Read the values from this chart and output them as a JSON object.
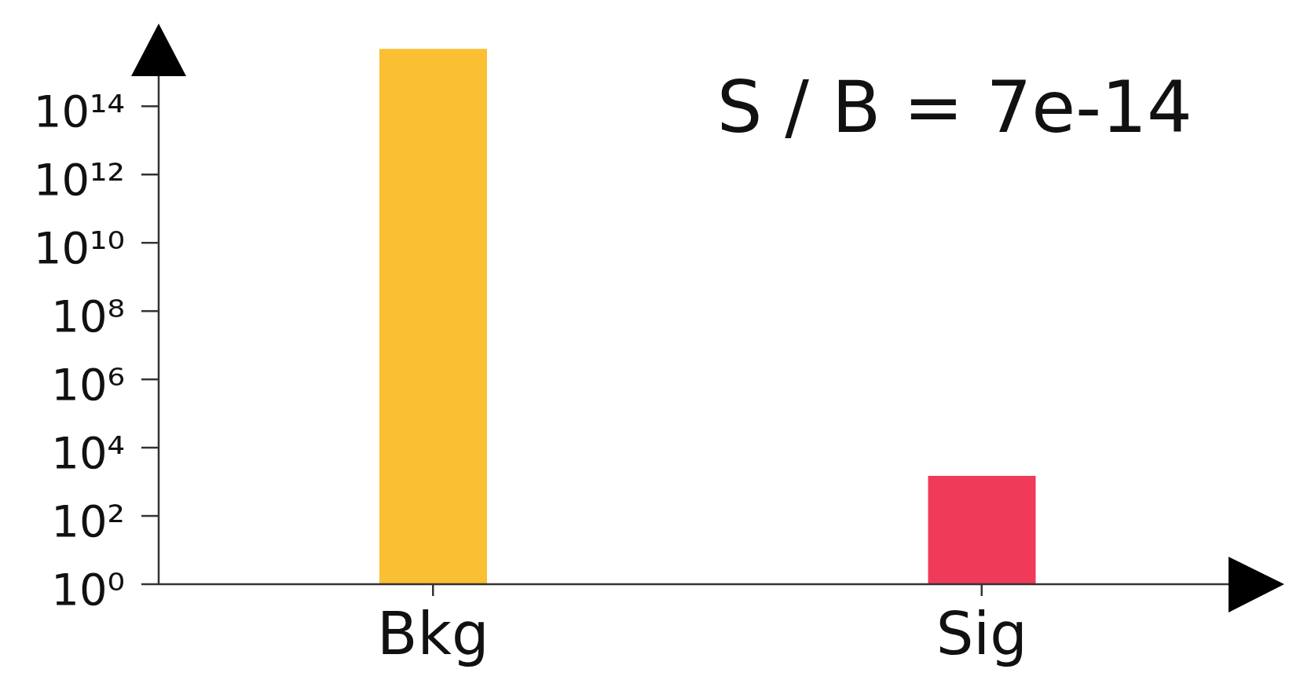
{
  "chart_data": {
    "type": "bar",
    "categories": [
      "Bkg",
      "Sig"
    ],
    "values": [
      4800000000000000.0,
      1500
    ],
    "colors": [
      "#fbbf34",
      "#f03a5a"
    ],
    "log": true,
    "ylim": [
      1,
      5400000000000000.0
    ],
    "yticks": [
      {
        "value": 1,
        "label": "10⁰"
      },
      {
        "value": 100,
        "label": "10²"
      },
      {
        "value": 10000,
        "label": "10⁴"
      },
      {
        "value": 1000000,
        "label": "10⁶"
      },
      {
        "value": 100000000,
        "label": "10⁸"
      },
      {
        "value": 10000000000,
        "label": "10¹⁰"
      },
      {
        "value": 1000000000000,
        "label": "10¹²"
      },
      {
        "value": 100000000000000,
        "label": "10¹⁴"
      }
    ],
    "annotations": [
      "S / B = 7e-14"
    ]
  }
}
